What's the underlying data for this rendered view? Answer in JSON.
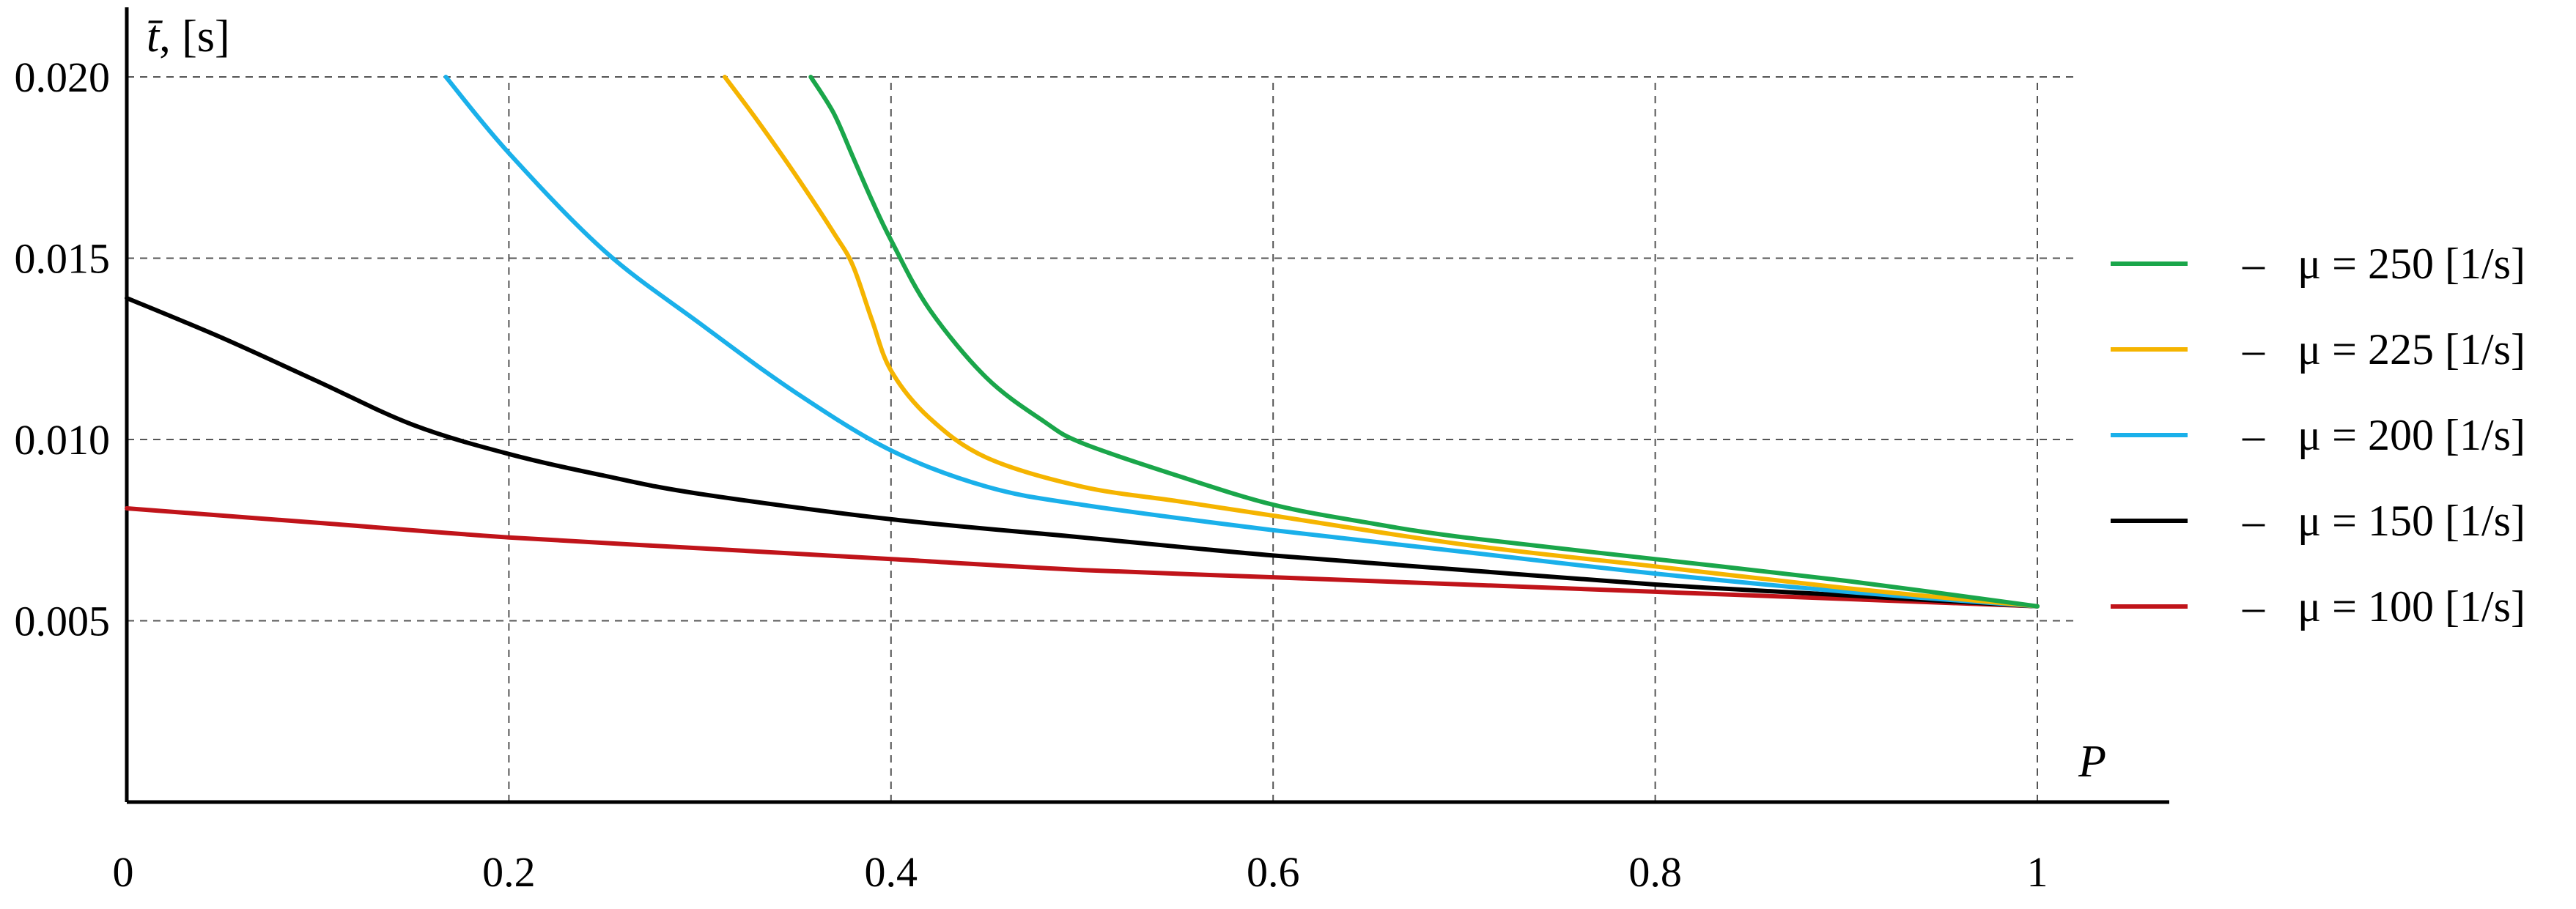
{
  "chart_data": {
    "type": "line",
    "xlabel": "P",
    "ylabel": "t̄, [s]",
    "ylabel_symbol": "t̄",
    "ylabel_unit": ", [s]",
    "xlim": [
      0,
      1
    ],
    "ylim": [
      0,
      0.02
    ],
    "x_ticks": [
      {
        "value": 0,
        "label": "0"
      },
      {
        "value": 0.2,
        "label": "0.2"
      },
      {
        "value": 0.4,
        "label": "0.4"
      },
      {
        "value": 0.6,
        "label": "0.6"
      },
      {
        "value": 0.8,
        "label": "0.8"
      },
      {
        "value": 1,
        "label": "1"
      }
    ],
    "y_ticks": [
      {
        "value": 0.005,
        "label": "0.005"
      },
      {
        "value": 0.01,
        "label": "0.010"
      },
      {
        "value": 0.015,
        "label": "0.015"
      },
      {
        "value": 0.02,
        "label": "0.020"
      }
    ],
    "grid": true,
    "legend_position": "right",
    "series": [
      {
        "name": "–   μ = 250 [1/s]",
        "color": "#1aa64a",
        "x": [
          0.358,
          0.37,
          0.38,
          0.39,
          0.4,
          0.42,
          0.45,
          0.48,
          0.5,
          0.55,
          0.6,
          0.65,
          0.7,
          0.8,
          0.9,
          1.0
        ],
        "y": [
          0.02,
          0.019,
          0.0178,
          0.0166,
          0.0155,
          0.0136,
          0.0117,
          0.0105,
          0.0099,
          0.009,
          0.0082,
          0.0077,
          0.0073,
          0.0067,
          0.0061,
          0.0054
        ]
      },
      {
        "name": "–   μ = 225 [1/s]",
        "color": "#f5b400",
        "x": [
          0.313,
          0.33,
          0.35,
          0.37,
          0.38,
          0.39,
          0.4,
          0.42,
          0.45,
          0.5,
          0.55,
          0.6,
          0.7,
          0.8,
          0.9,
          1.0
        ],
        "y": [
          0.02,
          0.0188,
          0.0173,
          0.0157,
          0.0148,
          0.0133,
          0.0119,
          0.0106,
          0.0095,
          0.0087,
          0.0083,
          0.0079,
          0.0071,
          0.0065,
          0.0059,
          0.0054
        ]
      },
      {
        "name": "–   μ = 200 [1/s]",
        "color": "#1ab0ea",
        "x": [
          0.167,
          0.2,
          0.25,
          0.3,
          0.35,
          0.4,
          0.45,
          0.5,
          0.6,
          0.7,
          0.8,
          0.9,
          1.0
        ],
        "y": [
          0.02,
          0.0179,
          0.0152,
          0.0132,
          0.0113,
          0.0097,
          0.0087,
          0.0082,
          0.0075,
          0.0069,
          0.0063,
          0.0058,
          0.0054
        ]
      },
      {
        "name": "–   μ = 150 [1/s]",
        "color": "#000000",
        "x": [
          0,
          0.05,
          0.1,
          0.15,
          0.2,
          0.25,
          0.3,
          0.4,
          0.5,
          0.6,
          0.7,
          0.8,
          0.9,
          1.0
        ],
        "y": [
          0.0139,
          0.0128,
          0.0116,
          0.0104,
          0.0096,
          0.009,
          0.0085,
          0.0078,
          0.0073,
          0.0068,
          0.0064,
          0.006,
          0.0057,
          0.0054
        ]
      },
      {
        "name": "–   μ = 100 [1/s]",
        "color": "#c0141a",
        "x": [
          0,
          0.1,
          0.2,
          0.3,
          0.4,
          0.5,
          0.6,
          0.7,
          0.8,
          0.9,
          1.0
        ],
        "y": [
          0.0081,
          0.0077,
          0.0073,
          0.007,
          0.0067,
          0.0064,
          0.0062,
          0.006,
          0.0058,
          0.0056,
          0.0054
        ]
      }
    ]
  }
}
